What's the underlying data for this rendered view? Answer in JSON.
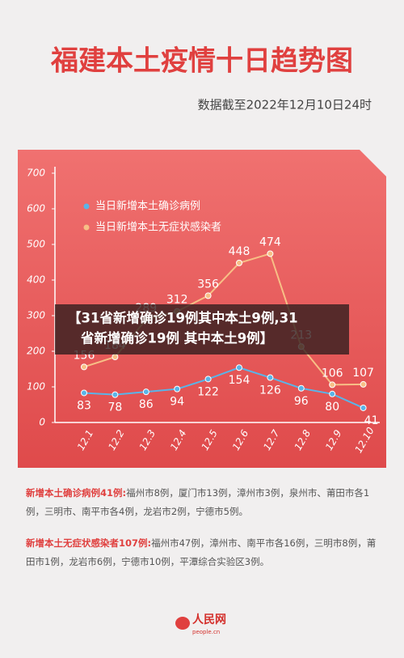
{
  "chart_data": {
    "type": "line",
    "title": "福建本土疫情十日趋势图",
    "subtitle": "数据截至2022年12月10日24时",
    "categories": [
      "12.1",
      "12.2",
      "12.3",
      "12.4",
      "12.5",
      "12.6",
      "12.7",
      "12.8",
      "12.9",
      "12.10"
    ],
    "series": [
      {
        "name": "当日新增本土确诊病例",
        "color": "#5ab4e8",
        "values": [
          83,
          78,
          86,
          94,
          122,
          154,
          126,
          96,
          80,
          41
        ]
      },
      {
        "name": "当日新增本土无症状感染者",
        "color": "#f7bf86",
        "values": [
          156,
          184,
          289,
          312,
          356,
          448,
          474,
          213,
          106,
          107
        ]
      }
    ],
    "ylim": [
      0,
      700
    ],
    "yticks": [
      0,
      100,
      200,
      300,
      400,
      500,
      600,
      700
    ],
    "grid": false
  },
  "banner": [
    "【31省新增确诊19例其中本土9例,31",
    "省新增确诊19例 其中本土9例】"
  ],
  "notes": [
    {
      "label": "新增本土确诊病例41例:",
      "text": "福州市8例，厦门市13例，漳州市3例，泉州市、莆田市各1例，三明市、南平市各4例，龙岩市2例，宁德市5例。"
    },
    {
      "label": "新增本土无症状感染者107例:",
      "text": "福州市47例，漳州市、南平市各16例，三明市8例，莆田市1例，龙岩市6例，宁德市10例，平潭综合实验区3例。"
    }
  ],
  "logo": {
    "name": "人民网",
    "url": "people.cn"
  }
}
